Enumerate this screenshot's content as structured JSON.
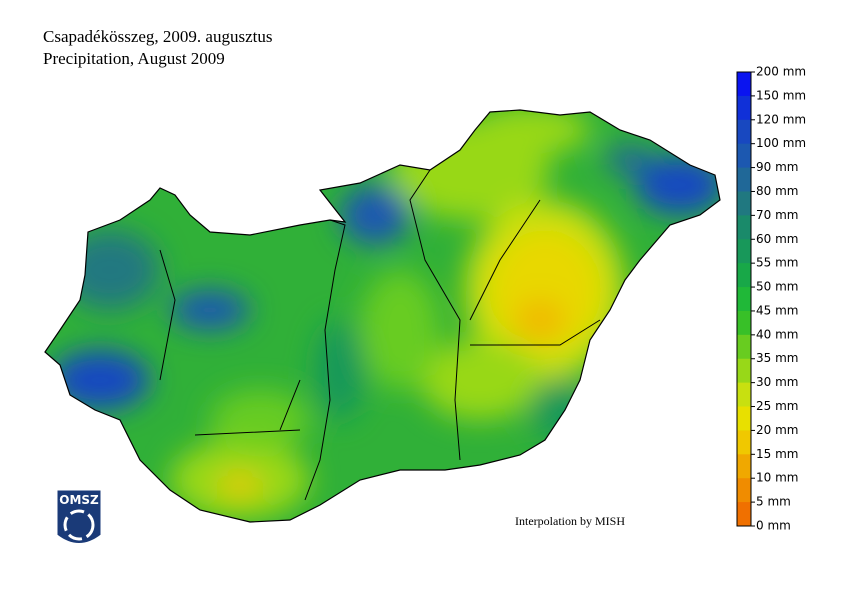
{
  "title": [
    "Csapadékösszeg, 2009. augusztus",
    "Precipitation, August 2009"
  ],
  "colorbar": {
    "labels": [
      "200 mm",
      "150 mm",
      "120 mm",
      "100 mm",
      "90 mm",
      "80 mm",
      "70 mm",
      "60 mm",
      "55 mm",
      "50 mm",
      "45 mm",
      "40 mm",
      "35 mm",
      "30 mm",
      "25 mm",
      "20 mm",
      "15 mm",
      "10 mm",
      "5 mm",
      "0 mm"
    ],
    "colors": [
      "#0a14f0",
      "#1030d8",
      "#1848c0",
      "#1c58b0",
      "#206898",
      "#207880",
      "#1a8a6a",
      "#18985a",
      "#18a848",
      "#20b838",
      "#38c028",
      "#68cc20",
      "#98d818",
      "#c8e010",
      "#e8e000",
      "#f0c800",
      "#f0a800",
      "#f08c00",
      "#f07000"
    ]
  },
  "credit": "Interpolation by MISH",
  "logo": "OMSZ"
}
